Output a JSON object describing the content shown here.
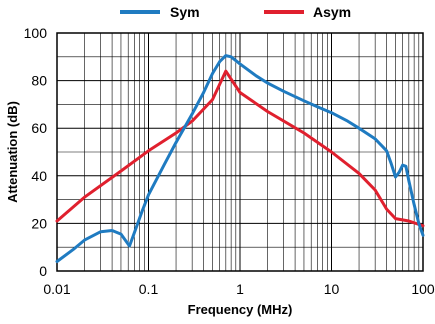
{
  "chart_data": {
    "type": "line",
    "title": "",
    "xlabel": "Frequency (MHz)",
    "ylabel": "Attenuation (dB)",
    "x_scale": "log",
    "xlim": [
      0.01,
      100
    ],
    "ylim": [
      0,
      100
    ],
    "grid": true,
    "legend_position": "top-center",
    "x_ticks": [
      {
        "value": 0.01,
        "label": "0.01"
      },
      {
        "value": 0.1,
        "label": "0.1"
      },
      {
        "value": 1,
        "label": "1"
      },
      {
        "value": 10,
        "label": "10"
      },
      {
        "value": 100,
        "label": "100"
      }
    ],
    "y_ticks": [
      {
        "value": 0,
        "label": "0"
      },
      {
        "value": 20,
        "label": "20"
      },
      {
        "value": 40,
        "label": "40"
      },
      {
        "value": 60,
        "label": "60"
      },
      {
        "value": 80,
        "label": "80"
      },
      {
        "value": 100,
        "label": "100"
      }
    ],
    "series": [
      {
        "name": "Sym",
        "color": "#1f7bc1",
        "points": [
          [
            0.01,
            4
          ],
          [
            0.015,
            9
          ],
          [
            0.02,
            13
          ],
          [
            0.03,
            16.5
          ],
          [
            0.04,
            17
          ],
          [
            0.05,
            15.5
          ],
          [
            0.062,
            10.5
          ],
          [
            0.07,
            16
          ],
          [
            0.085,
            25
          ],
          [
            0.1,
            32
          ],
          [
            0.15,
            45
          ],
          [
            0.2,
            54
          ],
          [
            0.3,
            66
          ],
          [
            0.4,
            75
          ],
          [
            0.5,
            83
          ],
          [
            0.6,
            88
          ],
          [
            0.7,
            90.5
          ],
          [
            0.8,
            90
          ],
          [
            1,
            87
          ],
          [
            1.5,
            82
          ],
          [
            2,
            79
          ],
          [
            3,
            75.5
          ],
          [
            5,
            71.5
          ],
          [
            7,
            69
          ],
          [
            10,
            66.5
          ],
          [
            15,
            63
          ],
          [
            20,
            60
          ],
          [
            30,
            55.5
          ],
          [
            40,
            50.5
          ],
          [
            45,
            45
          ],
          [
            50,
            39.5
          ],
          [
            55,
            41.5
          ],
          [
            60,
            44.5
          ],
          [
            65,
            44
          ],
          [
            70,
            38
          ],
          [
            80,
            28
          ],
          [
            90,
            20
          ],
          [
            100,
            15
          ]
        ]
      },
      {
        "name": "Asym",
        "color": "#e0202e",
        "points": [
          [
            0.01,
            21
          ],
          [
            0.02,
            31
          ],
          [
            0.05,
            42
          ],
          [
            0.1,
            50.5
          ],
          [
            0.2,
            58
          ],
          [
            0.3,
            63
          ],
          [
            0.5,
            72
          ],
          [
            0.7,
            84
          ],
          [
            1,
            75
          ],
          [
            2,
            67
          ],
          [
            5,
            58
          ],
          [
            10,
            50
          ],
          [
            20,
            41
          ],
          [
            30,
            34
          ],
          [
            40,
            26
          ],
          [
            50,
            22
          ],
          [
            70,
            21
          ],
          [
            100,
            19
          ]
        ]
      }
    ]
  }
}
